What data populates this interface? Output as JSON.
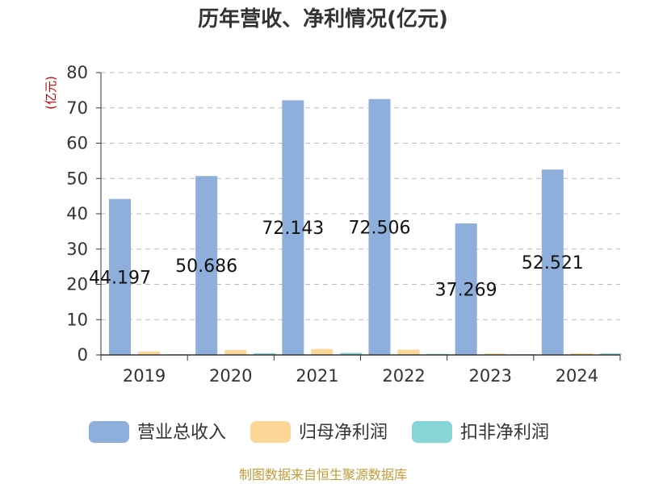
{
  "chart_data": {
    "type": "bar",
    "title": "历年营收、净利情况(亿元)",
    "ylabel": "(亿元)",
    "xlabel": "",
    "categories": [
      "2019",
      "2020",
      "2021",
      "2022",
      "2023",
      "2024"
    ],
    "ylim": [
      0,
      80
    ],
    "yticks": [
      0,
      10,
      20,
      30,
      40,
      50,
      60,
      70,
      80
    ],
    "grid": true,
    "legend_position": "bottom",
    "series": [
      {
        "name": "营业总收入",
        "color": "#8eaedc",
        "values": [
          44.197,
          50.686,
          72.143,
          72.506,
          37.269,
          52.521
        ],
        "labels": [
          "44.197",
          "50.686",
          "72.143",
          "72.506",
          "37.269",
          "52.521"
        ]
      },
      {
        "name": "归母净利润",
        "color": "#fdd797",
        "values": [
          1.0,
          1.4,
          1.7,
          1.5,
          0.4,
          0.5
        ]
      },
      {
        "name": "扣非净利润",
        "color": "#86d6d8",
        "values": [
          0.2,
          0.5,
          0.6,
          0.3,
          0.2,
          0.4
        ]
      }
    ]
  },
  "source": "制图数据来自恒生聚源数据库"
}
